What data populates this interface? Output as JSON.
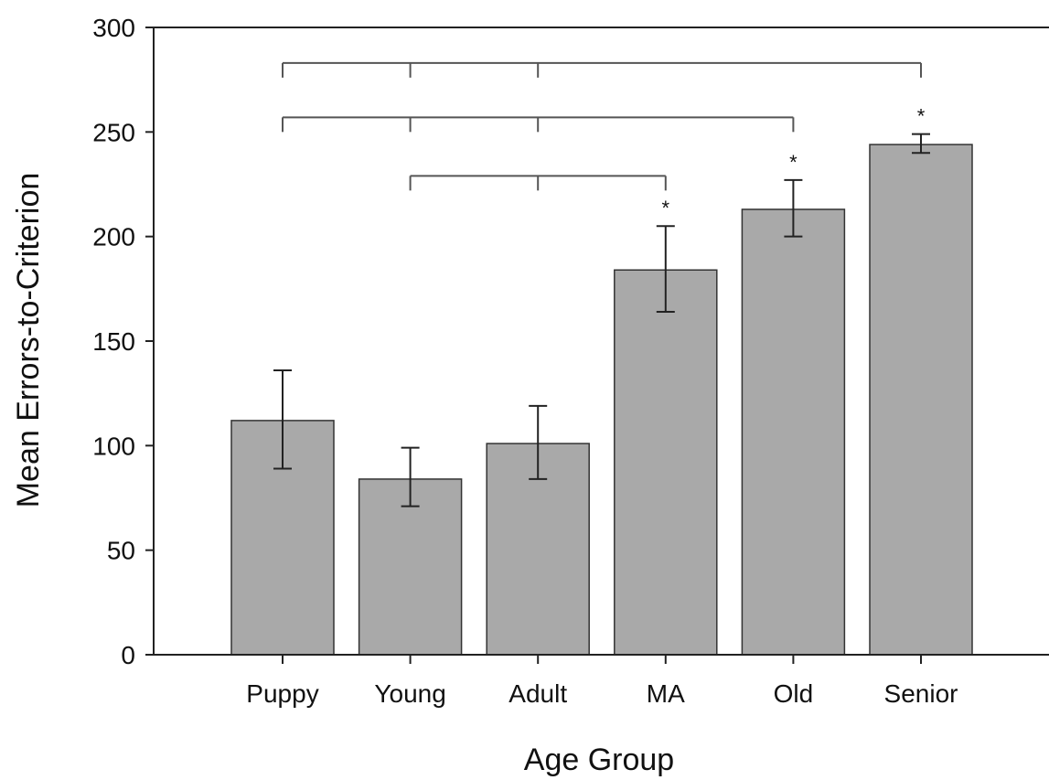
{
  "chart_data": {
    "type": "bar",
    "title": "",
    "xlabel": "Age Group",
    "ylabel": "Mean Errors-to-Criterion",
    "categories": [
      "Puppy",
      "Young",
      "Adult",
      "MA",
      "Old",
      "Senior"
    ],
    "values": [
      112,
      84,
      101,
      184,
      213,
      244
    ],
    "error_low": [
      89,
      71,
      84,
      164,
      200,
      240
    ],
    "error_high": [
      136,
      99,
      119,
      205,
      227,
      249
    ],
    "ylim": [
      0,
      300
    ],
    "yticks": [
      "0",
      "50",
      "100",
      "150",
      "200",
      "250",
      "300"
    ],
    "significance_markers": [
      "",
      "",
      "",
      "*",
      "*",
      "*"
    ],
    "comparison_brackets": [
      {
        "from": [
          "Young",
          "Adult"
        ],
        "to": "MA",
        "level": 229
      },
      {
        "from": [
          "Puppy",
          "Young",
          "Adult"
        ],
        "to": "Old",
        "level": 257
      },
      {
        "from": [
          "Puppy",
          "Young",
          "Adult"
        ],
        "to": "Senior",
        "level": 283
      }
    ],
    "grid": false,
    "legend": "none",
    "colors": {
      "bar_fill": "#a9a9a9",
      "bar_stroke": "#333333",
      "axis": "#222222",
      "bracket": "#555555"
    }
  }
}
